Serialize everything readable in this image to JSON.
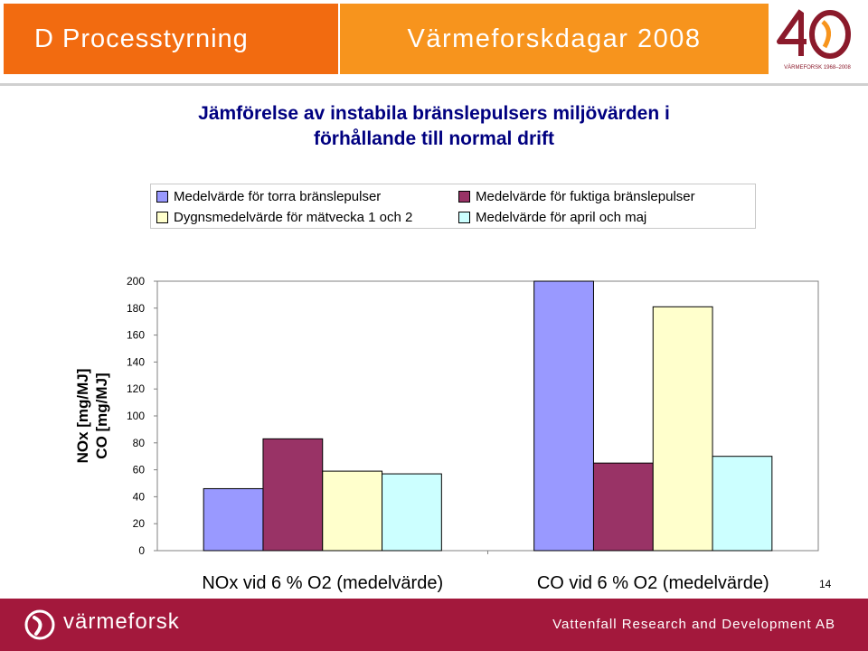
{
  "header": {
    "section": "D Processtyrning",
    "event": "Värmeforskdagar 2008",
    "logo_text": "VÄRMEFORSK 1968–2008",
    "logo_colors": {
      "digits": "#8b1a2b",
      "accent": "#f7941d"
    }
  },
  "colors": {
    "header_left": "#f26b10",
    "header_mid": "#f7941d",
    "footer": "#a3183c",
    "title": "#000080"
  },
  "chart_data": {
    "type": "bar",
    "title": "Jämförelse av instabila bränslepulsers miljövärden i förhållande till normal drift",
    "title_lines": [
      "Jämförelse av instabila bränslepulsers miljövärden i",
      "förhållande till normal drift"
    ],
    "categories": [
      "NOx vid 6 % O2 (medelvärde)",
      "CO vid 6 % O2 (medelvärde)"
    ],
    "series": [
      {
        "name": "Medelvärde för torra bränslepulser",
        "color": "#9999ff",
        "values": [
          46,
          200
        ]
      },
      {
        "name": "Medelvärde för fuktiga bränslepulser",
        "color": "#993366",
        "values": [
          83,
          65
        ]
      },
      {
        "name": "Dygnsmedelvärde för mätvecka 1 och 2",
        "color": "#ffffcc",
        "values": [
          59,
          181
        ]
      },
      {
        "name": "Medelvärde för april och maj",
        "color": "#ccffff",
        "values": [
          57,
          70
        ]
      }
    ],
    "ylabel_lines": [
      "NOx [mg/MJ]",
      "CO [mg/MJ]"
    ],
    "ylim": [
      0,
      200
    ],
    "yticks": [
      0,
      20,
      40,
      60,
      80,
      100,
      120,
      140,
      160,
      180,
      200
    ],
    "grid": false,
    "legend_position": "top"
  },
  "footer": {
    "brand": "värmeforsk",
    "org": "Vattenfall Research and Development AB"
  },
  "page_number": "14"
}
